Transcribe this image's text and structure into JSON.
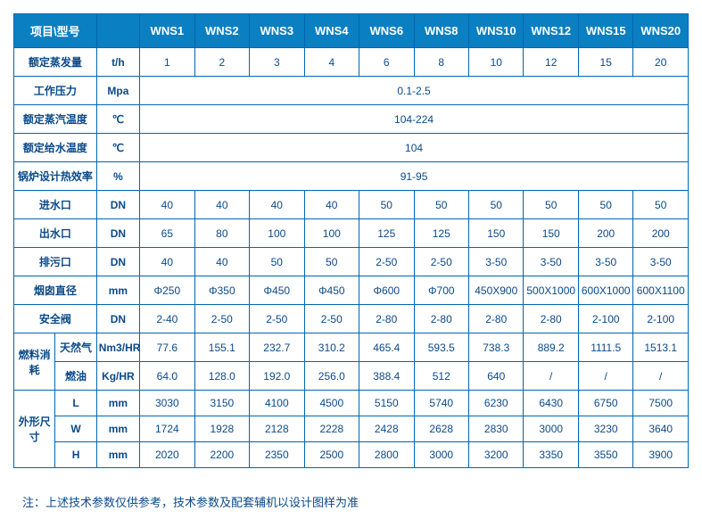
{
  "header": {
    "item_model": "项目\\型号",
    "models": [
      "WNS1",
      "WNS2",
      "WNS3",
      "WNS4",
      "WNS6",
      "WNS8",
      "WNS10",
      "WNS12",
      "WNS15",
      "WNS20"
    ]
  },
  "rows": {
    "evap": {
      "label": "额定蒸发量",
      "unit": "t/h",
      "vals": [
        "1",
        "2",
        "3",
        "4",
        "6",
        "8",
        "10",
        "12",
        "15",
        "20"
      ]
    },
    "pressure": {
      "label": "工作压力",
      "unit": "Mpa",
      "span": "0.1-2.5"
    },
    "steam_temp": {
      "label": "额定蒸汽温度",
      "unit": "℃",
      "span": "104-224"
    },
    "feed_temp": {
      "label": "额定给水温度",
      "unit": "℃",
      "span": "104"
    },
    "efficiency": {
      "label": "锅炉设计热效率",
      "unit": "%",
      "span": "91-95"
    },
    "inlet": {
      "label": "进水口",
      "unit": "DN",
      "vals": [
        "40",
        "40",
        "40",
        "40",
        "50",
        "50",
        "50",
        "50",
        "50",
        "50"
      ]
    },
    "outlet": {
      "label": "出水口",
      "unit": "DN",
      "vals": [
        "65",
        "80",
        "100",
        "100",
        "125",
        "125",
        "150",
        "150",
        "200",
        "200"
      ]
    },
    "blowdown": {
      "label": "排污口",
      "unit": "DN",
      "vals": [
        "40",
        "40",
        "50",
        "50",
        "2-50",
        "2-50",
        "3-50",
        "3-50",
        "3-50",
        "3-50"
      ]
    },
    "chimney": {
      "label": "烟囱直径",
      "unit": "mm",
      "vals": [
        "Φ250",
        "Φ350",
        "Φ450",
        "Φ450",
        "Φ600",
        "Φ700",
        "450X900",
        "500X1000",
        "600X1000",
        "600X1100"
      ]
    },
    "safety": {
      "label": "安全阀",
      "unit": "DN",
      "vals": [
        "2-40",
        "2-50",
        "2-50",
        "2-50",
        "2-80",
        "2-80",
        "2-80",
        "2-80",
        "2-100",
        "2-100"
      ]
    },
    "fuel": {
      "group": "燃料消耗",
      "gas": {
        "label": "天然气",
        "unit": "Nm3/HR",
        "vals": [
          "77.6",
          "155.1",
          "232.7",
          "310.2",
          "465.4",
          "593.5",
          "738.3",
          "889.2",
          "1111.5",
          "1513.1"
        ]
      },
      "oil": {
        "label": "燃油",
        "unit": "Kg/HR",
        "vals": [
          "64.0",
          "128.0",
          "192.0",
          "256.0",
          "388.4",
          "512",
          "640",
          "/",
          "/",
          "/"
        ]
      }
    },
    "dims": {
      "group": "外形尺寸",
      "L": {
        "label": "L",
        "unit": "mm",
        "vals": [
          "3030",
          "3150",
          "4100",
          "4500",
          "5150",
          "5740",
          "6230",
          "6430",
          "6750",
          "7500"
        ]
      },
      "W": {
        "label": "W",
        "unit": "mm",
        "vals": [
          "1724",
          "1928",
          "2128",
          "2228",
          "2428",
          "2628",
          "2830",
          "3000",
          "3230",
          "3640"
        ]
      },
      "H": {
        "label": "H",
        "unit": "mm",
        "vals": [
          "2020",
          "2200",
          "2350",
          "2500",
          "2800",
          "3000",
          "3200",
          "3350",
          "3550",
          "3900"
        ]
      }
    }
  },
  "note": "注：上述技术参数仅供参考，技术参数及配套辅机以设计图样为准"
}
